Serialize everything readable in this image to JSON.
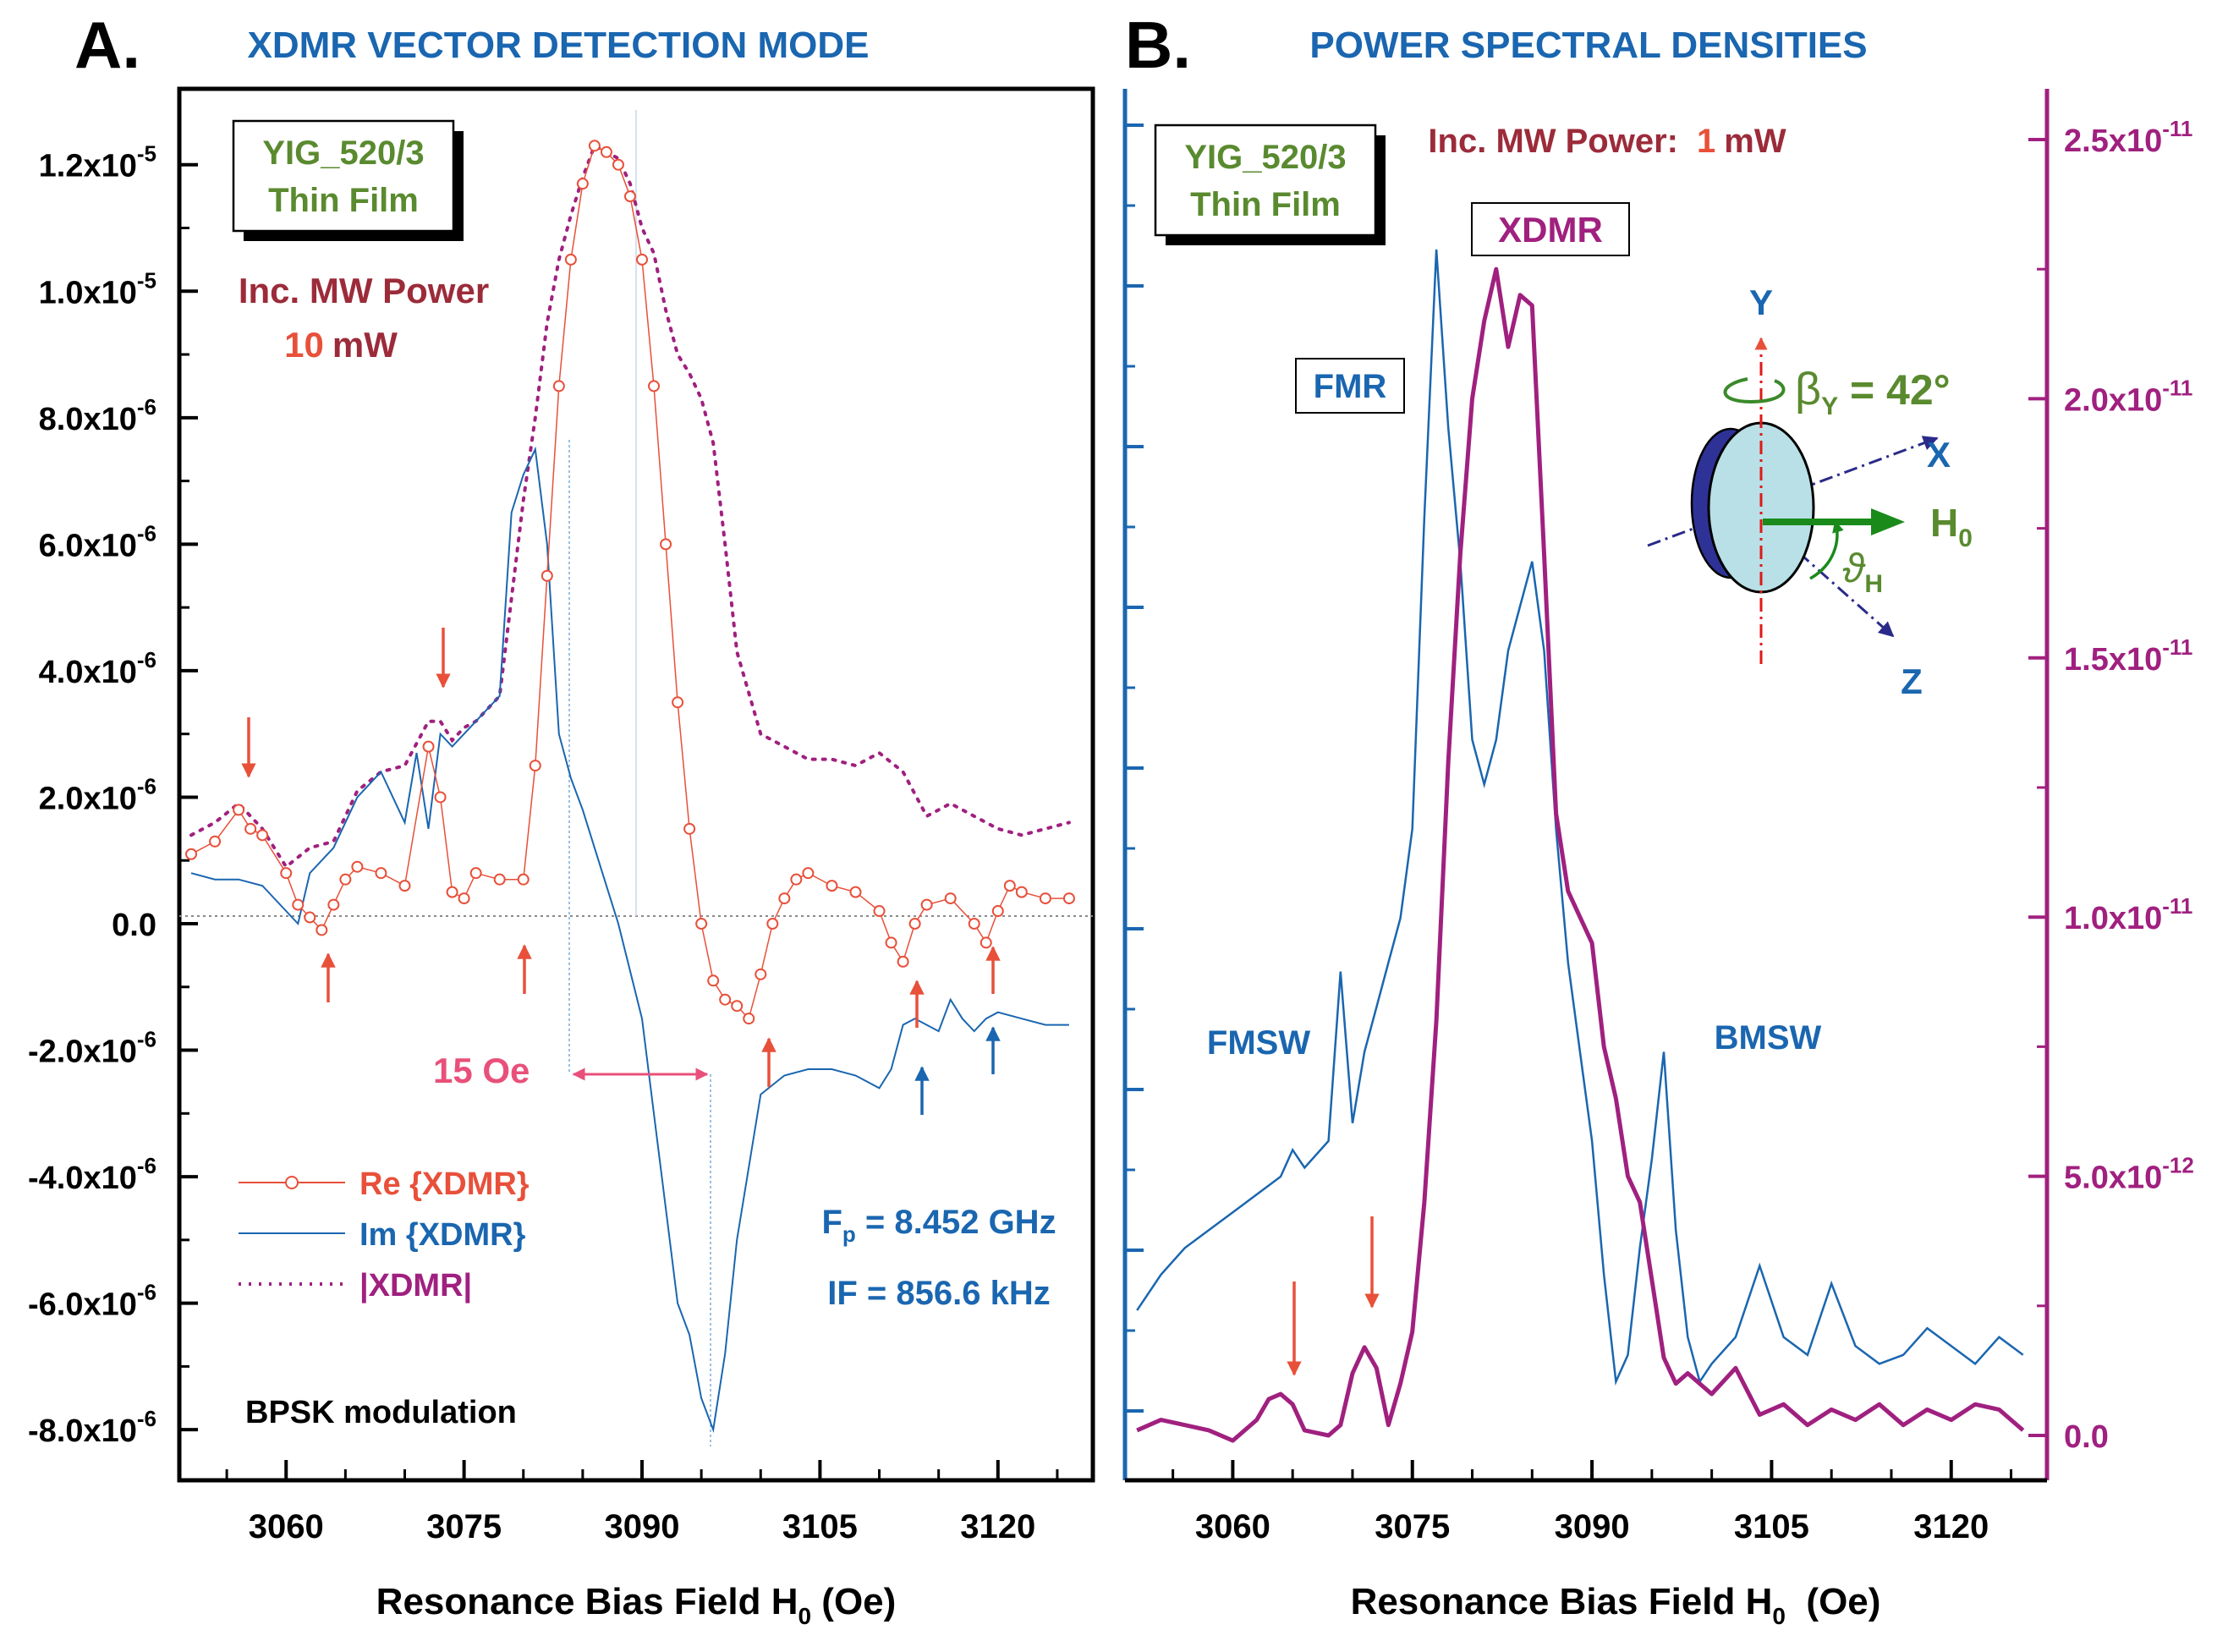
{
  "panel_a": {
    "letter": "A.",
    "title": "XDMR VECTOR DETECTION MODE",
    "sample_box": [
      "YIG_520/3",
      "Thin Film"
    ],
    "power_label": "Inc. MW Power",
    "power_value": "10",
    "power_unit": "mW",
    "width_annotation": "15 Oe",
    "freq_lines": [
      {
        "main": "F",
        "sub": "p",
        "rest": " = 8.452 GHz"
      },
      {
        "main": "IF = 856.6 kHz",
        "sub": "",
        "rest": ""
      }
    ],
    "modulation": "BPSK modulation",
    "xlabel": {
      "main": "Resonance Bias Field H",
      "sub": "0",
      "rest": " (Oe)"
    },
    "y_tick_labels": [
      {
        "mant": "1.2x10",
        "exp": "-5"
      },
      {
        "mant": "1.0x10",
        "exp": "-5"
      },
      {
        "mant": "8.0x10",
        "exp": "-6"
      },
      {
        "mant": "6.0x10",
        "exp": "-6"
      },
      {
        "mant": "4.0x10",
        "exp": "-6"
      },
      {
        "mant": "2.0x10",
        "exp": "-6"
      },
      {
        "mant": "0.0",
        "exp": ""
      },
      {
        "mant": "-2.0x10",
        "exp": "-6"
      },
      {
        "mant": "-4.0x10",
        "exp": "-6"
      },
      {
        "mant": "-6.0x10",
        "exp": "-6"
      },
      {
        "mant": "-8.0x10",
        "exp": "-6"
      }
    ],
    "x_tick_labels": [
      "3060",
      "3075",
      "3090",
      "3105",
      "3120"
    ]
  },
  "panel_b": {
    "letter": "B.",
    "title": "POWER SPECTRAL DENSITIES",
    "sample_box": [
      "YIG_520/3",
      "Thin Film"
    ],
    "power_label": "Inc. MW Power:",
    "power_value": "1",
    "power_unit": "mW",
    "labels": {
      "xdmr": "XDMR",
      "fmr": "FMR",
      "fmsw": "FMSW",
      "bmsw": "BMSW"
    },
    "axes_diagram": {
      "y": "Y",
      "x": "X",
      "z": "Z",
      "h": "H",
      "h_sub": "0",
      "beta": "β",
      "beta_sub": "Y",
      "beta_value": " = 42°",
      "theta": "ϑ",
      "theta_sub": "H"
    },
    "xlabel": {
      "main": "Resonance Bias Field H",
      "sub": "0",
      "rest": "  (Oe)"
    },
    "x_tick_labels": [
      "3060",
      "3075",
      "3090",
      "3105",
      "3120"
    ],
    "y_right_tick_labels": [
      {
        "mant": "2.5x10",
        "exp": "-11"
      },
      {
        "mant": "2.0x10",
        "exp": "-11"
      },
      {
        "mant": "1.5x10",
        "exp": "-11"
      },
      {
        "mant": "1.0x10",
        "exp": "-11"
      },
      {
        "mant": "5.0x10",
        "exp": "-12"
      },
      {
        "mant": "0.0",
        "exp": ""
      }
    ]
  },
  "colors": {
    "re": "#e8503a",
    "im": "#1a66b0",
    "abs": "#a0207f",
    "psd_xdmr": "#a0207f",
    "psd_fmr": "#1a66b0",
    "title_blue": "#1a66b0",
    "sample_green": "#5a8a2f",
    "power_maroon": "#9c2b3a",
    "pink": "#e8507a",
    "arrow_red": "#e8503a",
    "arrow_blue": "#1a66b0"
  },
  "chart_data": [
    {
      "type": "line",
      "panel": "A",
      "title": "XDMR VECTOR DETECTION MODE",
      "xlabel": "Resonance Bias Field H0 (Oe)",
      "ylabel": "",
      "xlim": [
        3051,
        3128
      ],
      "ylim": [
        -8.8e-06,
        1.32e-05
      ],
      "x_ticks": [
        3060,
        3075,
        3090,
        3105,
        3120
      ],
      "y_ticks": [
        1.2e-05,
        1e-05,
        8e-06,
        6e-06,
        4e-06,
        2e-06,
        0.0,
        -2e-06,
        -4e-06,
        -6e-06,
        -8e-06
      ],
      "legend": "bottom-left",
      "series": [
        {
          "name": "Re {XDMR}",
          "style": "line+open-circles",
          "x": [
            3052,
            3054,
            3056,
            3057,
            3058,
            3060,
            3061,
            3062,
            3063,
            3064,
            3065,
            3066,
            3068,
            3070,
            3072,
            3073,
            3074,
            3075,
            3076,
            3078,
            3080,
            3081,
            3082,
            3083,
            3084,
            3085,
            3086,
            3087,
            3088,
            3089,
            3090,
            3091,
            3092,
            3093,
            3094,
            3095,
            3096,
            3097,
            3098,
            3099,
            3100,
            3101,
            3102,
            3103,
            3104,
            3106,
            3108,
            3110,
            3111,
            3112,
            3113,
            3114,
            3116,
            3118,
            3119,
            3120,
            3121,
            3122,
            3124,
            3126
          ],
          "y": [
            1.1e-06,
            1.3e-06,
            1.8e-06,
            1.5e-06,
            1.4e-06,
            8e-07,
            3e-07,
            1e-07,
            -1e-07,
            3e-07,
            7e-07,
            9e-07,
            8e-07,
            6e-07,
            2.8e-06,
            2e-06,
            5e-07,
            4e-07,
            8e-07,
            7e-07,
            7e-07,
            2.5e-06,
            5.5e-06,
            8.5e-06,
            1.05e-05,
            1.17e-05,
            1.23e-05,
            1.22e-05,
            1.2e-05,
            1.15e-05,
            1.05e-05,
            8.5e-06,
            6e-06,
            3.5e-06,
            1.5e-06,
            0.0,
            -9e-07,
            -1.2e-06,
            -1.3e-06,
            -1.5e-06,
            -8e-07,
            0.0,
            4e-07,
            7e-07,
            8e-07,
            6e-07,
            5e-07,
            2e-07,
            -3e-07,
            -6e-07,
            0.0,
            3e-07,
            4e-07,
            0.0,
            -3e-07,
            2e-07,
            6e-07,
            5e-07,
            4e-07,
            4e-07
          ]
        },
        {
          "name": "Im {XDMR}",
          "style": "thin line",
          "x": [
            3052,
            3054,
            3056,
            3058,
            3060,
            3061,
            3062,
            3064,
            3066,
            3068,
            3070,
            3071,
            3072,
            3073,
            3074,
            3075,
            3076,
            3078,
            3079,
            3080,
            3081,
            3082,
            3083,
            3084,
            3085,
            3086,
            3088,
            3090,
            3091,
            3092,
            3093,
            3094,
            3095,
            3096,
            3097,
            3098,
            3100,
            3102,
            3104,
            3106,
            3108,
            3110,
            3111,
            3112,
            3113,
            3115,
            3116,
            3117,
            3118,
            3119,
            3120,
            3122,
            3124,
            3126
          ],
          "y": [
            8e-07,
            7e-07,
            7e-07,
            6e-07,
            2e-07,
            0.0,
            8e-07,
            1.2e-06,
            2e-06,
            2.4e-06,
            1.6e-06,
            2.7e-06,
            1.5e-06,
            3e-06,
            2.8e-06,
            3e-06,
            3.2e-06,
            3.6e-06,
            6.5e-06,
            7.1e-06,
            7.5e-06,
            6e-06,
            3e-06,
            2.3e-06,
            1.8e-06,
            1.2e-06,
            0.0,
            -1.5e-06,
            -3e-06,
            -4.5e-06,
            -6e-06,
            -6.5e-06,
            -7.5e-06,
            -8e-06,
            -6.8e-06,
            -5e-06,
            -2.7e-06,
            -2.4e-06,
            -2.3e-06,
            -2.3e-06,
            -2.4e-06,
            -2.6e-06,
            -2.3e-06,
            -1.6e-06,
            -1.5e-06,
            -1.7e-06,
            -1.2e-06,
            -1.5e-06,
            -1.7e-06,
            -1.5e-06,
            -1.4e-06,
            -1.5e-06,
            -1.6e-06,
            -1.6e-06
          ]
        },
        {
          "name": "|XDMR|",
          "style": "dotted line",
          "x": [
            3052,
            3054,
            3056,
            3058,
            3060,
            3062,
            3064,
            3066,
            3068,
            3070,
            3072,
            3073,
            3074,
            3075,
            3076,
            3078,
            3080,
            3081,
            3082,
            3083,
            3084,
            3085,
            3086,
            3087,
            3088,
            3089,
            3090,
            3091,
            3092,
            3093,
            3094,
            3095,
            3096,
            3097,
            3098,
            3100,
            3102,
            3104,
            3106,
            3108,
            3110,
            3112,
            3114,
            3116,
            3118,
            3120,
            3122,
            3124,
            3126
          ],
          "y": [
            1.4e-06,
            1.6e-06,
            1.9e-06,
            1.5e-06,
            9e-07,
            1.2e-06,
            1.3e-06,
            2.1e-06,
            2.4e-06,
            2.5e-06,
            3.2e-06,
            3.2e-06,
            2.9e-06,
            3.1e-06,
            3.2e-06,
            3.6e-06,
            6.7e-06,
            8e-06,
            9.5e-06,
            1.05e-05,
            1.12e-05,
            1.18e-05,
            1.23e-05,
            1.22e-05,
            1.21e-05,
            1.17e-05,
            1.1e-05,
            1.06e-05,
            9.7e-06,
            9e-06,
            8.7e-06,
            8.3e-06,
            7.6e-06,
            6e-06,
            4.3e-06,
            3e-06,
            2.8e-06,
            2.6e-06,
            2.6e-06,
            2.5e-06,
            2.7e-06,
            2.4e-06,
            1.7e-06,
            1.9e-06,
            1.7e-06,
            1.5e-06,
            1.4e-06,
            1.5e-06,
            1.6e-06
          ]
        }
      ]
    },
    {
      "type": "line",
      "panel": "B",
      "title": "POWER SPECTRAL DENSITIES",
      "xlabel": "Resonance Bias Field H0  (Oe)",
      "ylabel": "",
      "xlim": [
        3051,
        3128
      ],
      "y_right_lim": [
        -5e-13,
        2.5e-11
      ],
      "x_ticks": [
        3060,
        3075,
        3090,
        3105,
        3120
      ],
      "y_right_ticks": [
        2.5e-11,
        2e-11,
        1.5e-11,
        1e-11,
        5e-12,
        0.0
      ],
      "series": [
        {
          "name": "XDMR",
          "axis": "right",
          "style": "thick line",
          "x": [
            3052,
            3054,
            3056,
            3058,
            3060,
            3062,
            3063,
            3064,
            3065,
            3066,
            3068,
            3069,
            3070,
            3071,
            3072,
            3073,
            3074,
            3075,
            3076,
            3077,
            3078,
            3079,
            3080,
            3081,
            3082,
            3083,
            3084,
            3085,
            3086,
            3087,
            3088,
            3089,
            3090,
            3091,
            3092,
            3093,
            3094,
            3095,
            3096,
            3097,
            3098,
            3100,
            3102,
            3104,
            3106,
            3108,
            3110,
            3112,
            3114,
            3116,
            3118,
            3120,
            3122,
            3124,
            3126
          ],
          "y": [
            1e-13,
            3e-13,
            2e-13,
            1e-13,
            -1e-13,
            3e-13,
            7e-13,
            8e-13,
            6e-13,
            1e-13,
            0.0,
            2e-13,
            1.2e-12,
            1.7e-12,
            1.3e-12,
            2e-13,
            1e-12,
            2e-12,
            4.5e-12,
            8e-12,
            1.3e-11,
            1.7e-11,
            2e-11,
            2.15e-11,
            2.25e-11,
            2.1e-11,
            2.2e-11,
            2.18e-11,
            1.7e-11,
            1.2e-11,
            1.05e-11,
            1e-11,
            9.5e-12,
            7.5e-12,
            6.5e-12,
            5e-12,
            4.5e-12,
            3e-12,
            1.5e-12,
            1e-12,
            1.2e-12,
            8e-13,
            1.3e-12,
            4e-13,
            6e-13,
            2e-13,
            5e-13,
            3e-13,
            6e-13,
            2e-13,
            5e-13,
            3e-13,
            6e-13,
            5e-13,
            1e-13
          ]
        },
        {
          "name": "FMR",
          "axis": "unlabeled-left",
          "style": "thin line",
          "x": [
            3052,
            3054,
            3056,
            3058,
            3060,
            3062,
            3064,
            3065,
            3066,
            3068,
            3069,
            3070,
            3071,
            3072,
            3073,
            3074,
            3075,
            3076,
            3077,
            3078,
            3079,
            3080,
            3081,
            3082,
            3083,
            3084,
            3085,
            3086,
            3087,
            3088,
            3089,
            3090,
            3091,
            3092,
            3093,
            3094,
            3095,
            3096,
            3097,
            3098,
            3099,
            3100,
            3102,
            3104,
            3106,
            3108,
            3110,
            3112,
            3114,
            3116,
            3118,
            3120,
            3122,
            3124,
            3126
          ],
          "y": [
            1.1,
            1.5,
            1.8,
            2.0,
            2.2,
            2.4,
            2.6,
            2.9,
            2.7,
            3.0,
            4.9,
            3.2,
            4.0,
            4.5,
            5.0,
            5.5,
            6.5,
            10.0,
            13.0,
            11.0,
            9.5,
            7.5,
            7.0,
            7.5,
            8.5,
            9.0,
            9.5,
            8.5,
            6.5,
            5.0,
            4.0,
            3.0,
            1.5,
            0.3,
            0.6,
            1.8,
            2.8,
            4.0,
            2.0,
            0.8,
            0.3,
            0.5,
            0.8,
            1.6,
            0.8,
            0.6,
            1.4,
            0.7,
            0.5,
            0.6,
            0.9,
            0.7,
            0.5,
            0.8,
            0.6
          ]
        }
      ]
    }
  ]
}
